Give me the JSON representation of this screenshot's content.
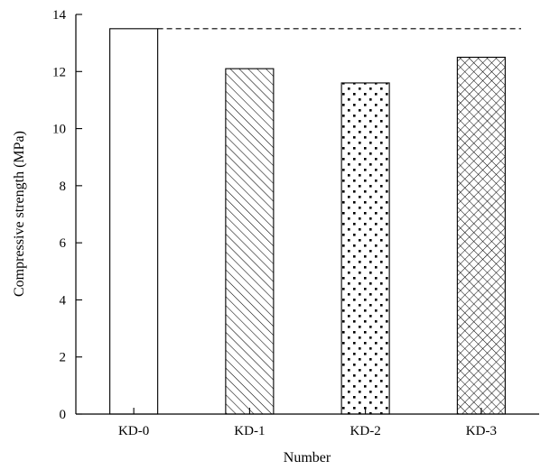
{
  "chart_data": {
    "type": "bar",
    "title": "",
    "xlabel": "Number",
    "ylabel": "Compressive strength (MPa)",
    "categories": [
      "KD-0",
      "KD-1",
      "KD-2",
      "KD-3"
    ],
    "values": [
      13.5,
      12.1,
      11.6,
      12.5
    ],
    "patterns": [
      "none",
      "diagonal-hatch",
      "dots",
      "crosshatch"
    ],
    "ylim": [
      0,
      14
    ],
    "yticks": [
      0,
      2,
      4,
      6,
      8,
      10,
      12,
      14
    ],
    "reference_line": {
      "value": 13.5,
      "style": "dashed"
    },
    "grid": false,
    "legend": "none"
  }
}
